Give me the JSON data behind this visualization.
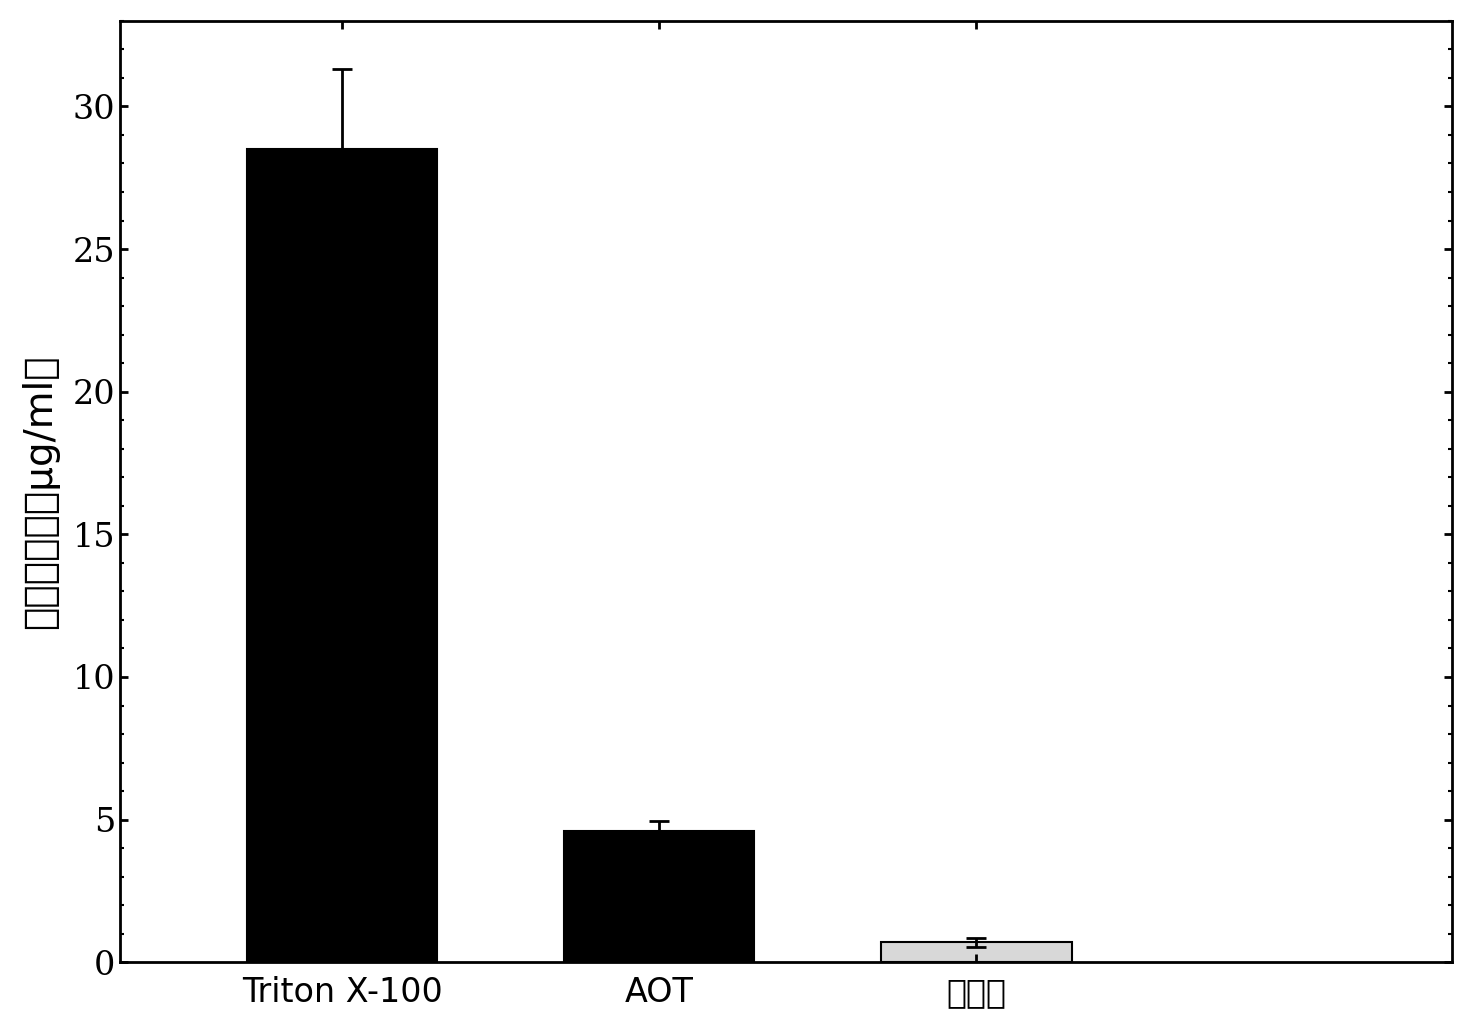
{
  "categories": [
    "Triton X-100",
    "AOT",
    "水溶液"
  ],
  "values": [
    28.5,
    4.6,
    0.7
  ],
  "errors": [
    2.8,
    0.35,
    0.15
  ],
  "bar_colors": [
    "#000000",
    "#000000",
    "#d8d8d8"
  ],
  "bar_edge_colors": [
    "#000000",
    "#000000",
    "#000000"
  ],
  "ylabel": "葡萄糖浓度（μg/ml）",
  "ylim": [
    0,
    33
  ],
  "yticks": [
    0,
    5,
    10,
    15,
    20,
    25,
    30
  ],
  "background_color": "#ffffff",
  "bar_width": 0.6,
  "error_capsize": 8,
  "ylabel_fontsize": 28,
  "tick_fontsize": 24,
  "xlabel_fontsize": 24
}
